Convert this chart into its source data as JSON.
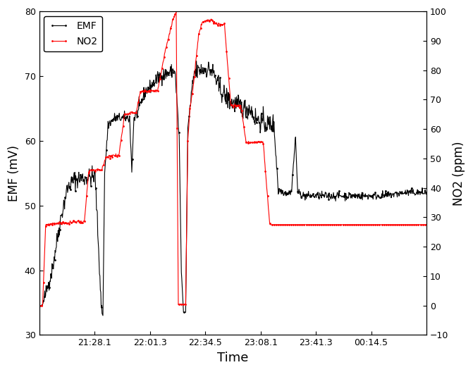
{
  "title": "",
  "xlabel": "Time",
  "ylabel_left": "EMF (mV)",
  "ylabel_right": "NO2 (ppm)",
  "ylim_left": [
    30,
    80
  ],
  "ylim_right": [
    -10,
    100
  ],
  "yticks_left": [
    30,
    40,
    50,
    60,
    70,
    80
  ],
  "yticks_right": [
    -10,
    0,
    10,
    20,
    30,
    40,
    50,
    60,
    70,
    80,
    90,
    100
  ],
  "xtick_labels": [
    "21:28.1",
    "22:01.3",
    "22:34.5",
    "23:08.1",
    "23:41.3",
    "00:14.5"
  ],
  "emf_color": "#000000",
  "no2_color": "#ff0000",
  "legend_emf": "EMF",
  "legend_no2": "NO2",
  "background_color": "#ffffff"
}
